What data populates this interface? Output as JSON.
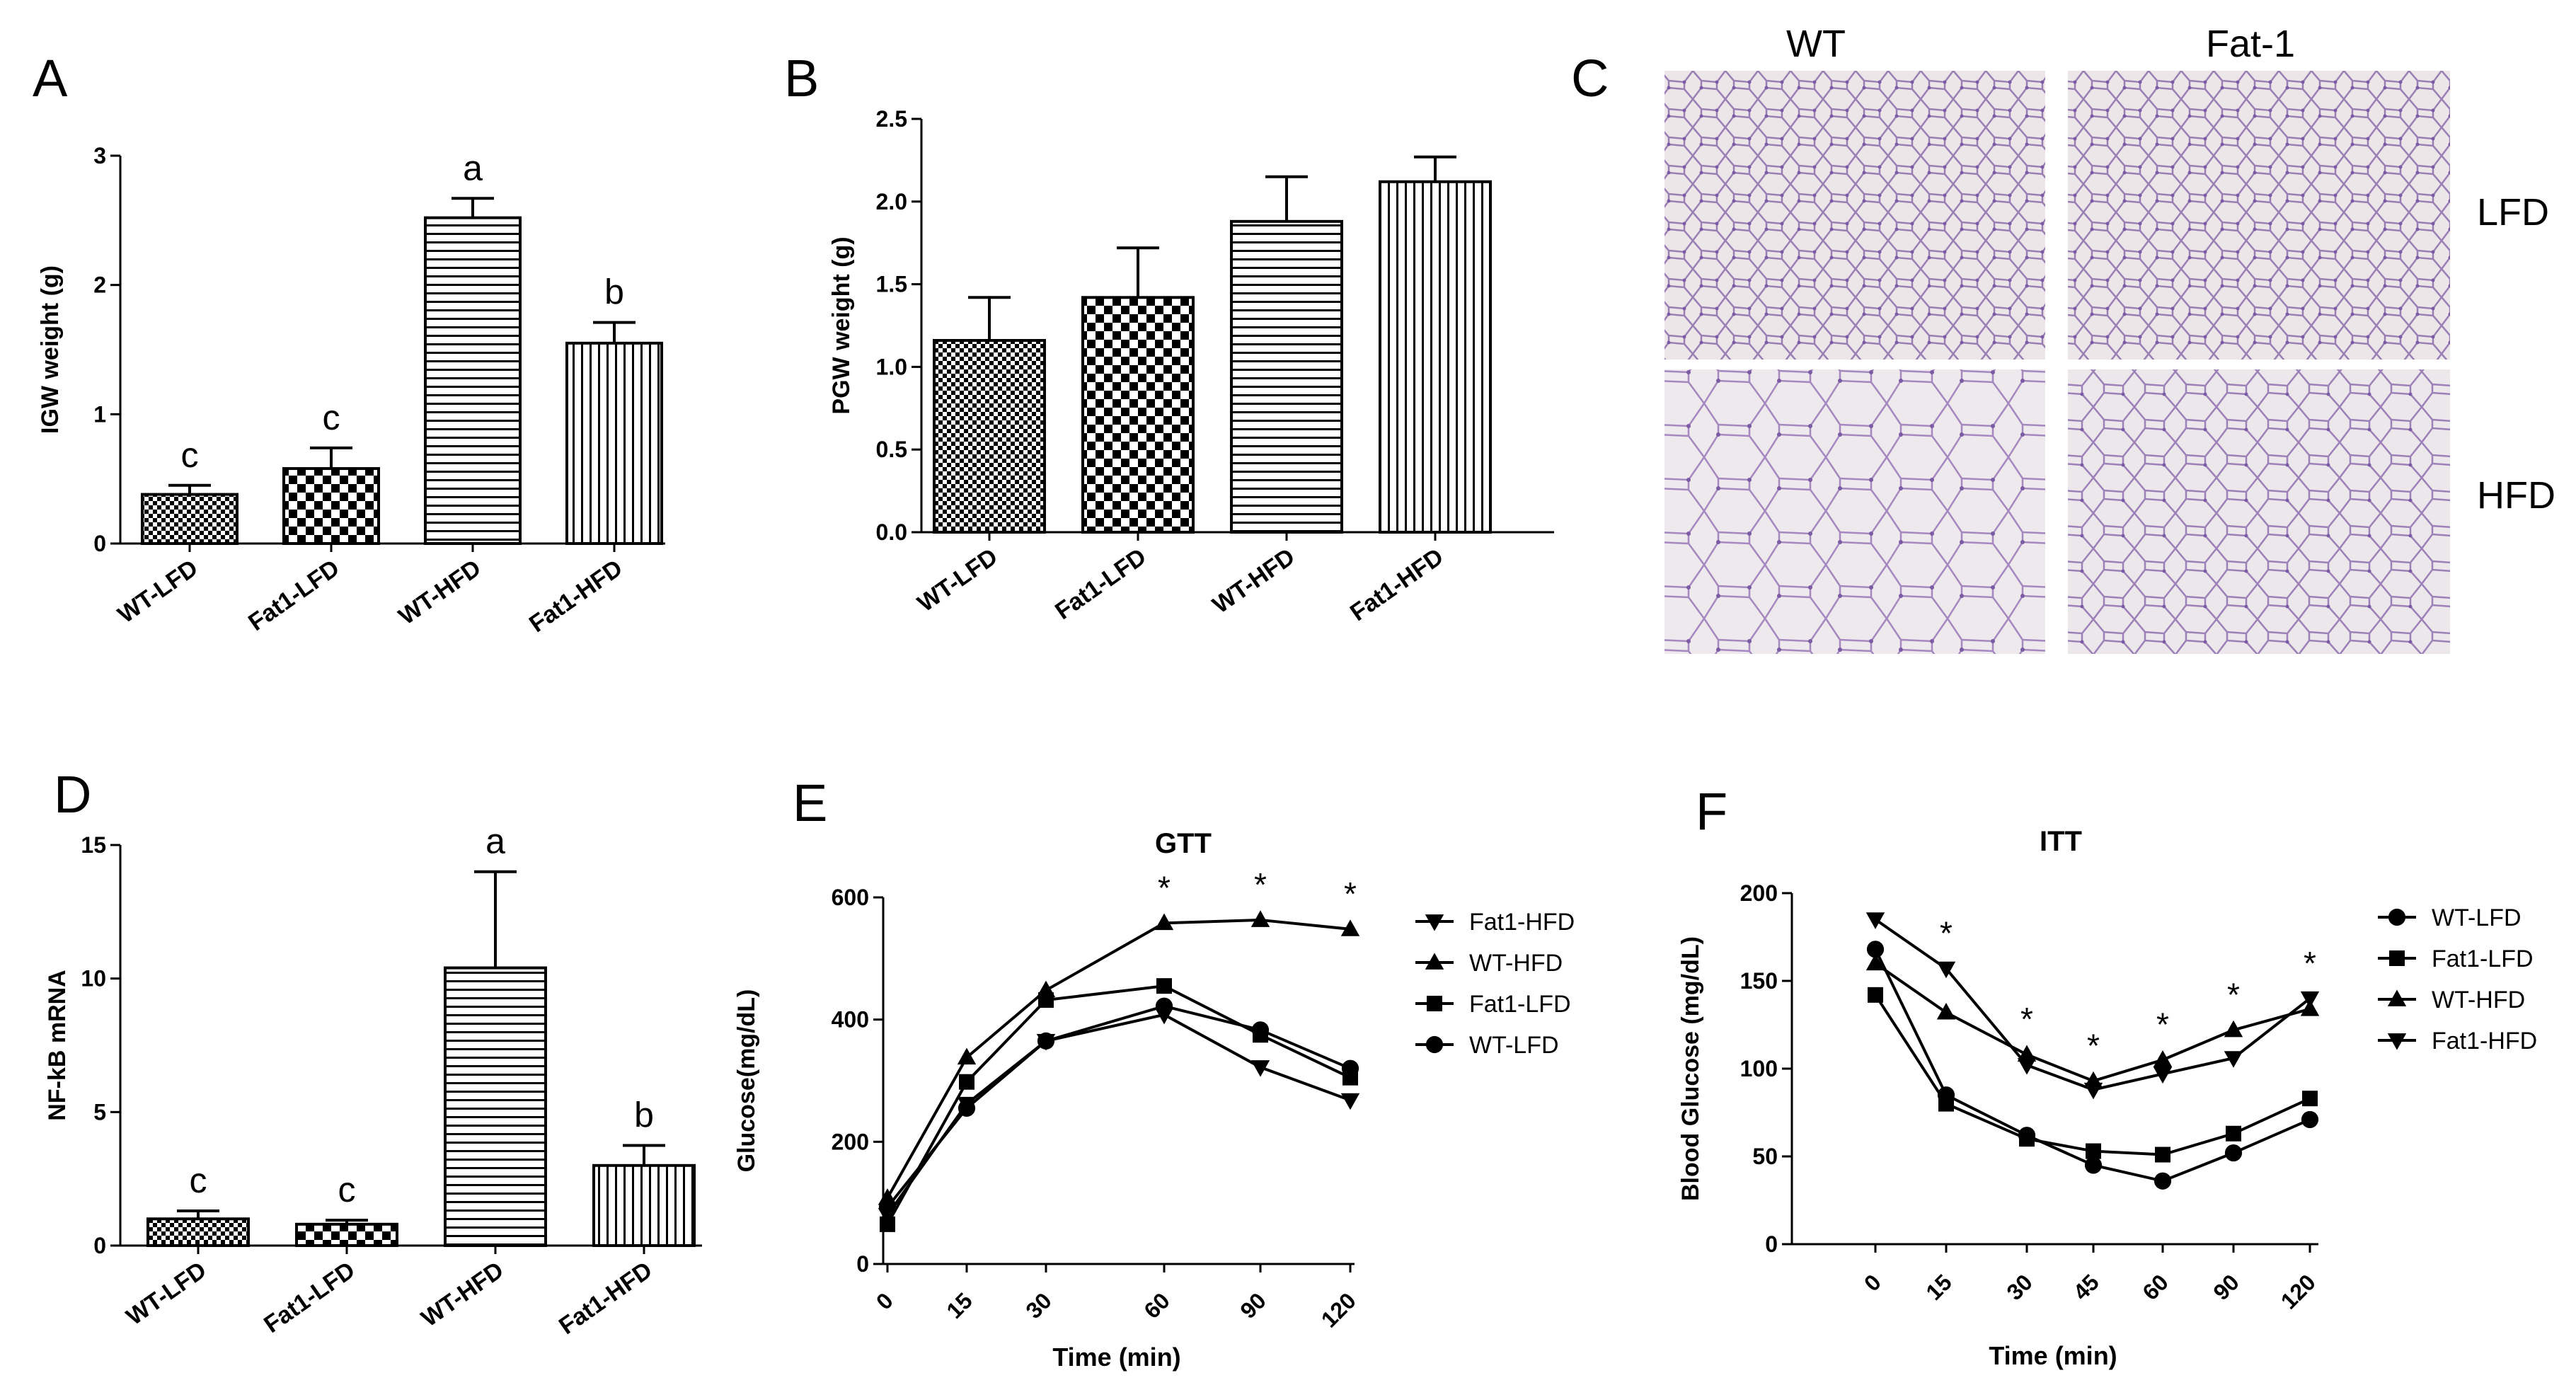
{
  "colors": {
    "ink": "#000000",
    "bar_fill": "#ffffff",
    "tissue_bg": "#ece6e9",
    "tissue_line": "#9a7fb5"
  },
  "panels": {
    "A": "A",
    "B": "B",
    "C": "C",
    "D": "D",
    "E": "E",
    "F": "F"
  },
  "histology": {
    "col_labels": [
      "WT",
      "Fat-1"
    ],
    "row_labels": [
      "LFD",
      "HFD"
    ]
  },
  "chart_data": [
    {
      "id": "A",
      "type": "bar",
      "title": "",
      "xlabel": "",
      "ylabel": "IGW weight (g)",
      "ylim": [
        0,
        3
      ],
      "yticks": [
        0,
        1,
        2,
        3
      ],
      "ytick_labels": [
        "0",
        "1",
        "2",
        "3"
      ],
      "categories": [
        "WT-LFD",
        "Fat1-LFD",
        "WT-HFD",
        "Fat1-HFD"
      ],
      "values": [
        0.38,
        0.58,
        2.52,
        1.55
      ],
      "errors": [
        0.07,
        0.16,
        0.15,
        0.16
      ],
      "significance": [
        "c",
        "c",
        "a",
        "b"
      ],
      "patterns": [
        "dots",
        "checker",
        "hlines",
        "vlines"
      ]
    },
    {
      "id": "B",
      "type": "bar",
      "title": "",
      "xlabel": "",
      "ylabel": "PGW weight (g)",
      "ylim": [
        0,
        2.5
      ],
      "yticks": [
        0,
        0.5,
        1,
        1.5,
        2,
        2.5
      ],
      "ytick_labels": [
        "0.0",
        "0.5",
        "1.0",
        "1.5",
        "2.0",
        "2.5"
      ],
      "categories": [
        "WT-LFD",
        "Fat1-LFD",
        "WT-HFD",
        "Fat1-HFD"
      ],
      "values": [
        1.16,
        1.42,
        1.88,
        2.12
      ],
      "errors": [
        0.26,
        0.3,
        0.27,
        0.15
      ],
      "patterns": [
        "dots",
        "checker",
        "hlines",
        "vlines"
      ]
    },
    {
      "id": "D",
      "type": "bar",
      "title": "",
      "xlabel": "",
      "ylabel": "NF-kB mRNA",
      "ylim": [
        0,
        15
      ],
      "yticks": [
        0,
        5,
        10,
        15
      ],
      "ytick_labels": [
        "0",
        "5",
        "10",
        "15"
      ],
      "categories": [
        "WT-LFD",
        "Fat1-LFD",
        "WT-HFD",
        "Fat1-HFD"
      ],
      "values": [
        1.0,
        0.8,
        10.4,
        3.0
      ],
      "errors": [
        0.3,
        0.15,
        3.6,
        0.75
      ],
      "significance": [
        "c",
        "c",
        "a",
        "b"
      ],
      "patterns": [
        "dots",
        "checker",
        "hlines",
        "vlines"
      ]
    },
    {
      "id": "E",
      "type": "line",
      "title": "GTT",
      "xlabel": "Time (min)",
      "ylabel": "Glucose(mg/dL)",
      "x": [
        "0",
        "15",
        "30",
        "60",
        "90",
        "120"
      ],
      "ylim": [
        0,
        600
      ],
      "yticks": [
        0,
        200,
        400,
        600
      ],
      "ytick_labels": [
        "0",
        "200",
        "400",
        "600"
      ],
      "series": [
        {
          "name": "Fat1-HFD",
          "marker": "tri-down",
          "values": [
            80,
            262,
            365,
            408,
            322,
            268
          ]
        },
        {
          "name": "WT-HFD",
          "marker": "tri-up",
          "values": [
            108,
            338,
            448,
            558,
            563,
            548
          ]
        },
        {
          "name": "Fat1-LFD",
          "marker": "square",
          "values": [
            65,
            298,
            432,
            455,
            375,
            305
          ]
        },
        {
          "name": "WT-LFD",
          "marker": "circle",
          "values": [
            93,
            255,
            365,
            422,
            383,
            320
          ]
        }
      ],
      "star_at": [
        "60",
        "90",
        "120"
      ],
      "star_label": "*",
      "legend": "right"
    },
    {
      "id": "F",
      "type": "line",
      "title": "ITT",
      "xlabel": "Time (min)",
      "ylabel": "Blood Glucose (mg/dL)",
      "x": [
        "0",
        "15",
        "30",
        "45",
        "60",
        "90",
        "120"
      ],
      "ylim": [
        0,
        200
      ],
      "yticks": [
        0,
        50,
        100,
        150,
        200
      ],
      "ytick_labels": [
        "0",
        "50",
        "100",
        "150",
        "200"
      ],
      "series": [
        {
          "name": "WT-LFD",
          "marker": "circle",
          "values": [
            168,
            85,
            62,
            45,
            36,
            52,
            71
          ]
        },
        {
          "name": "Fat1-LFD",
          "marker": "square",
          "values": [
            142,
            80,
            60,
            53,
            51,
            63,
            83
          ]
        },
        {
          "name": "WT-HFD",
          "marker": "tri-up",
          "values": [
            160,
            132,
            108,
            93,
            105,
            122,
            134
          ]
        },
        {
          "name": "Fat1-HFD",
          "marker": "tri-down",
          "values": [
            185,
            157,
            102,
            88,
            97,
            106,
            140
          ]
        }
      ],
      "star_at": [
        "15",
        "30",
        "45",
        "60",
        "90",
        "120"
      ],
      "star_label": "*",
      "legend": "right"
    }
  ]
}
